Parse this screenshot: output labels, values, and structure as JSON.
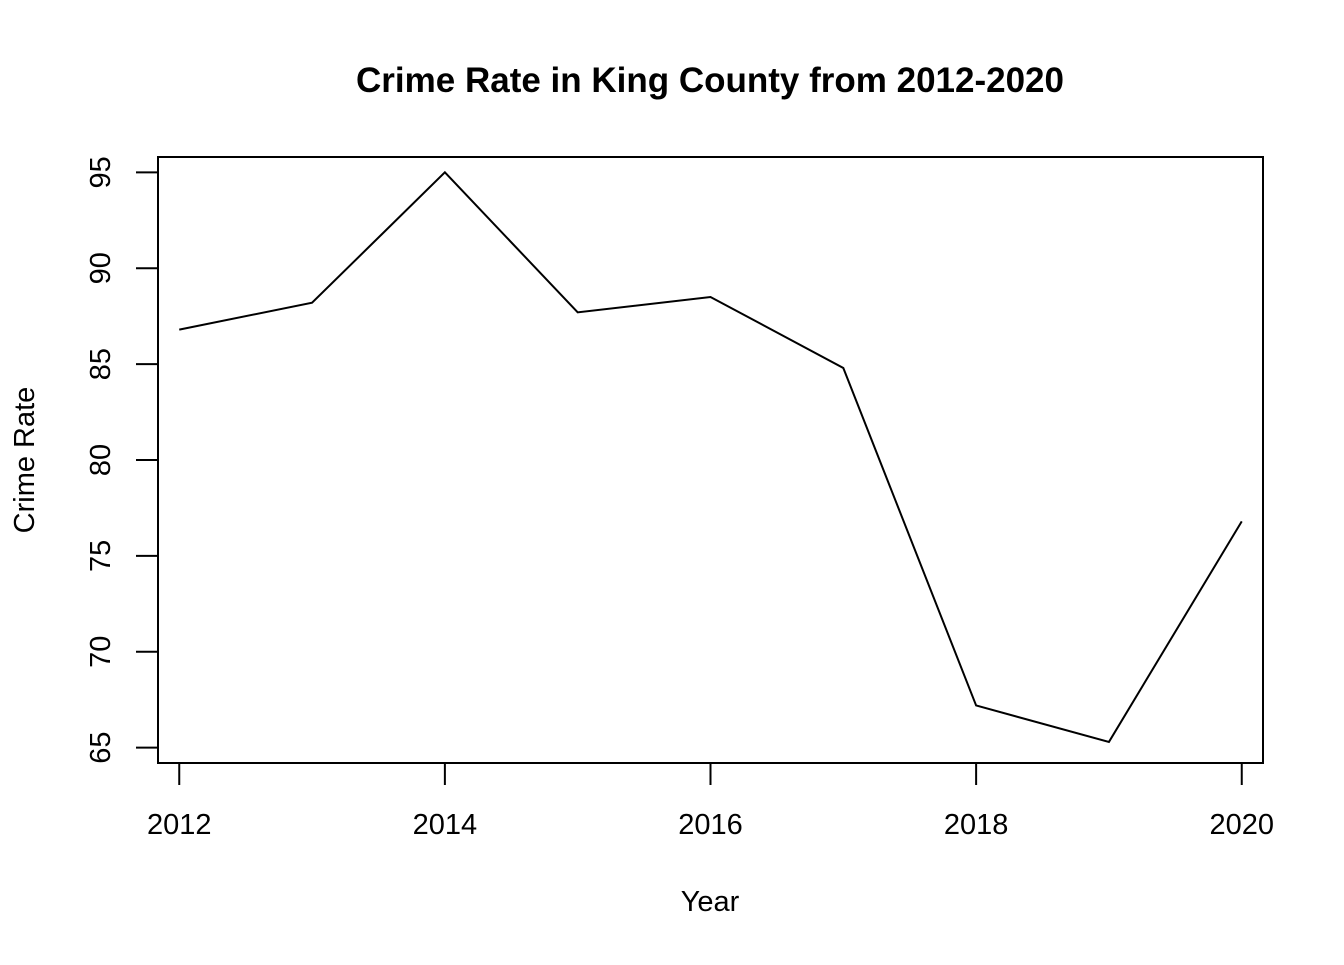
{
  "chart_data": {
    "type": "line",
    "title": "Crime Rate in King County from 2012-2020",
    "xlabel": "Year",
    "ylabel": "Crime Rate",
    "x": [
      2012,
      2013,
      2014,
      2015,
      2016,
      2017,
      2018,
      2019,
      2020
    ],
    "series": [
      {
        "values": [
          86.8,
          88.2,
          95.0,
          87.7,
          88.5,
          84.8,
          67.2,
          65.3,
          76.8
        ]
      }
    ],
    "xticks": [
      2012,
      2014,
      2016,
      2018,
      2020
    ],
    "yticks": [
      65,
      70,
      75,
      80,
      85,
      90,
      95
    ],
    "xlim": [
      2011.84,
      2020.16
    ],
    "ylim": [
      64.2,
      95.8
    ],
    "grid": false,
    "line_color": "#000000"
  }
}
